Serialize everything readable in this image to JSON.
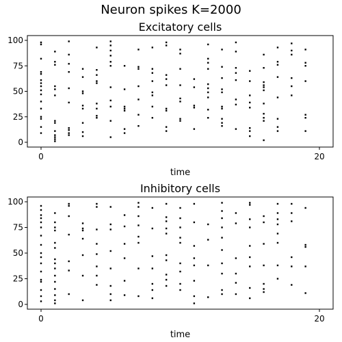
{
  "figure": {
    "title": "Neuron spikes K=2000"
  },
  "chart_data": [
    {
      "type": "scatter",
      "title": "Excitatory cells",
      "xlabel": "time",
      "ylabel": "",
      "xlim": [
        0,
        20
      ],
      "ylim": [
        0,
        100
      ],
      "xticks": [
        0,
        20
      ],
      "yticks": [
        0,
        25,
        50,
        75,
        100
      ],
      "grid": false,
      "color": "#000000",
      "series": [
        {
          "x": [
            0.0,
            0.0,
            0.0,
            0.0,
            0.0,
            0.0,
            0.0,
            0.0,
            0.0,
            0.0,
            0.0,
            0.0,
            0.0,
            0.0,
            0.0,
            0.0,
            1.0,
            1.0,
            1.0,
            1.0,
            1.0,
            1.0,
            1.0,
            1.0,
            1.0,
            1.0,
            1.0,
            1.0,
            1.0,
            2.0,
            2.0,
            2.0,
            2.0,
            2.0,
            2.0,
            2.0,
            2.0,
            2.0,
            2.0,
            3.0,
            3.0,
            3.0,
            3.0,
            3.0,
            3.0,
            3.0,
            3.0,
            3.0,
            4.0,
            4.0,
            4.0,
            4.0,
            4.0,
            4.0,
            4.0,
            4.0,
            4.0,
            5.0,
            5.0,
            5.0,
            5.0,
            5.0,
            5.0,
            5.0,
            5.0,
            5.0,
            5.0,
            5.0,
            6.0,
            6.0,
            6.0,
            6.0,
            6.0,
            6.0,
            6.0,
            7.0,
            7.0,
            7.0,
            7.0,
            7.0,
            7.0,
            7.0,
            8.0,
            8.0,
            8.0,
            8.0,
            8.0,
            8.0,
            8.0,
            8.0,
            9.0,
            9.0,
            9.0,
            9.0,
            9.0,
            9.0,
            9.0,
            9.0,
            9.0,
            10.0,
            10.0,
            10.0,
            10.0,
            10.0,
            10.0,
            10.0,
            10.0,
            11.0,
            11.0,
            11.0,
            11.0,
            11.0,
            12.0,
            12.0,
            12.0,
            12.0,
            12.0,
            12.0,
            12.0,
            12.0,
            12.0,
            12.0,
            13.0,
            13.0,
            13.0,
            13.0,
            13.0,
            13.0,
            13.0,
            13.0,
            13.0,
            13.0,
            14.0,
            14.0,
            14.0,
            14.0,
            14.0,
            14.0,
            14.0,
            14.0,
            15.0,
            15.0,
            15.0,
            15.0,
            15.0,
            15.0,
            15.0,
            15.0,
            16.0,
            16.0,
            16.0,
            16.0,
            16.0,
            16.0,
            16.0,
            16.0,
            16.0,
            16.0,
            16.0,
            17.0,
            17.0,
            17.0,
            17.0,
            17.0,
            17.0,
            17.0,
            17.0,
            18.0,
            18.0,
            18.0,
            18.0,
            18.0,
            18.0,
            19.0,
            19.0,
            19.0,
            19.0,
            19.0,
            19.0,
            19.0
          ],
          "y": [
            98,
            96,
            82,
            69,
            67,
            61,
            58,
            55,
            51,
            47,
            40,
            33,
            25,
            23,
            15,
            9,
            89,
            79,
            76,
            55,
            52,
            46,
            21,
            19,
            11,
            7,
            5,
            3,
            1,
            99,
            86,
            77,
            69,
            53,
            39,
            14,
            12,
            9,
            7,
            72,
            64,
            50,
            48,
            36,
            33,
            19,
            10,
            6,
            93,
            71,
            66,
            60,
            58,
            38,
            33,
            26,
            24,
            99,
            95,
            90,
            85,
            79,
            75,
            54,
            41,
            35,
            21,
            5,
            75,
            52,
            35,
            33,
            31,
            13,
            9,
            91,
            74,
            72,
            55,
            42,
            27,
            16,
            93,
            72,
            68,
            60,
            49,
            46,
            35,
            24,
            98,
            95,
            66,
            62,
            56,
            33,
            31,
            15,
            11,
            91,
            87,
            72,
            56,
            43,
            40,
            23,
            21,
            62,
            54,
            36,
            34,
            13,
            96,
            82,
            78,
            72,
            57,
            53,
            49,
            44,
            32,
            24,
            91,
            74,
            63,
            52,
            49,
            35,
            33,
            23,
            19,
            16,
            98,
            89,
            73,
            68,
            61,
            42,
            37,
            13,
            70,
            60,
            46,
            39,
            34,
            14,
            11,
            6,
            86,
            73,
            59,
            56,
            54,
            51,
            38,
            28,
            24,
            21,
            2,
            93,
            79,
            76,
            64,
            44,
            23,
            15,
            11,
            97,
            90,
            86,
            63,
            55,
            46,
            91,
            78,
            75,
            60,
            27,
            24,
            11
          ]
        }
      ]
    },
    {
      "type": "scatter",
      "title": "Inhibitory cells",
      "xlabel": "time",
      "ylabel": "",
      "xlim": [
        0,
        20
      ],
      "ylim": [
        0,
        100
      ],
      "xticks": [
        0,
        20
      ],
      "yticks": [
        0,
        25,
        50,
        75,
        100
      ],
      "grid": false,
      "color": "#000000",
      "series": [
        {
          "x": [
            0.0,
            0.0,
            0.0,
            0.0,
            0.0,
            0.0,
            0.0,
            0.0,
            0.0,
            0.0,
            0.0,
            0.0,
            0.0,
            0.0,
            0.0,
            0.0,
            0.0,
            1.0,
            1.0,
            1.0,
            1.0,
            1.0,
            1.0,
            1.0,
            1.0,
            1.0,
            1.0,
            1.0,
            1.0,
            1.0,
            1.0,
            1.0,
            2.0,
            2.0,
            2.0,
            2.0,
            2.0,
            2.0,
            2.0,
            3.0,
            3.0,
            3.0,
            3.0,
            3.0,
            3.0,
            3.0,
            4.0,
            4.0,
            4.0,
            4.0,
            4.0,
            4.0,
            4.0,
            4.0,
            5.0,
            5.0,
            5.0,
            5.0,
            5.0,
            5.0,
            5.0,
            5.0,
            6.0,
            6.0,
            6.0,
            6.0,
            6.0,
            6.0,
            7.0,
            7.0,
            7.0,
            7.0,
            7.0,
            7.0,
            7.0,
            7.0,
            8.0,
            8.0,
            8.0,
            8.0,
            8.0,
            8.0,
            8.0,
            9.0,
            9.0,
            9.0,
            9.0,
            9.0,
            9.0,
            9.0,
            9.0,
            9.0,
            9.0,
            10.0,
            10.0,
            10.0,
            10.0,
            10.0,
            10.0,
            10.0,
            10.0,
            10.0,
            11.0,
            11.0,
            11.0,
            11.0,
            11.0,
            11.0,
            11.0,
            11.0,
            12.0,
            12.0,
            12.0,
            12.0,
            13.0,
            13.0,
            13.0,
            13.0,
            13.0,
            13.0,
            13.0,
            13.0,
            13.0,
            13.0,
            14.0,
            14.0,
            14.0,
            14.0,
            14.0,
            14.0,
            15.0,
            15.0,
            15.0,
            15.0,
            15.0,
            15.0,
            15.0,
            15.0,
            15.0,
            16.0,
            16.0,
            16.0,
            16.0,
            16.0,
            16.0,
            16.0,
            17.0,
            17.0,
            17.0,
            17.0,
            17.0,
            17.0,
            17.0,
            17.0,
            18.0,
            18.0,
            18.0,
            18.0,
            18.0,
            18.0,
            19.0,
            19.0,
            19.0,
            19.0,
            19.0
          ],
          "y": [
            96,
            92,
            87,
            84,
            80,
            75,
            67,
            58,
            50,
            46,
            40,
            32,
            24,
            22,
            14,
            8,
            3,
            89,
            80,
            75,
            72,
            60,
            55,
            44,
            40,
            35,
            28,
            22,
            15,
            9,
            4,
            1,
            98,
            96,
            86,
            68,
            42,
            33,
            10,
            79,
            74,
            72,
            64,
            48,
            28,
            4,
            98,
            95,
            73,
            59,
            49,
            37,
            28,
            19,
            95,
            78,
            73,
            52,
            35,
            18,
            10,
            4,
            87,
            76,
            59,
            45,
            23,
            9,
            99,
            95,
            86,
            77,
            66,
            60,
            35,
            8,
            94,
            74,
            47,
            35,
            20,
            14,
            6,
            98,
            85,
            81,
            74,
            69,
            48,
            43,
            29,
            24,
            18,
            94,
            84,
            75,
            65,
            60,
            40,
            32,
            20,
            14,
            98,
            80,
            57,
            45,
            38,
            23,
            8,
            1,
            78,
            63,
            38,
            7,
            99,
            91,
            84,
            75,
            65,
            53,
            40,
            30,
            14,
            10,
            89,
            79,
            45,
            30,
            21,
            10,
            99,
            97,
            83,
            75,
            57,
            46,
            37,
            16,
            6,
            86,
            80,
            59,
            38,
            20,
            15,
            12,
            98,
            89,
            83,
            78,
            69,
            60,
            38,
            25,
            98,
            89,
            81,
            46,
            37,
            19,
            94,
            58,
            56,
            37,
            11
          ]
        }
      ]
    }
  ]
}
